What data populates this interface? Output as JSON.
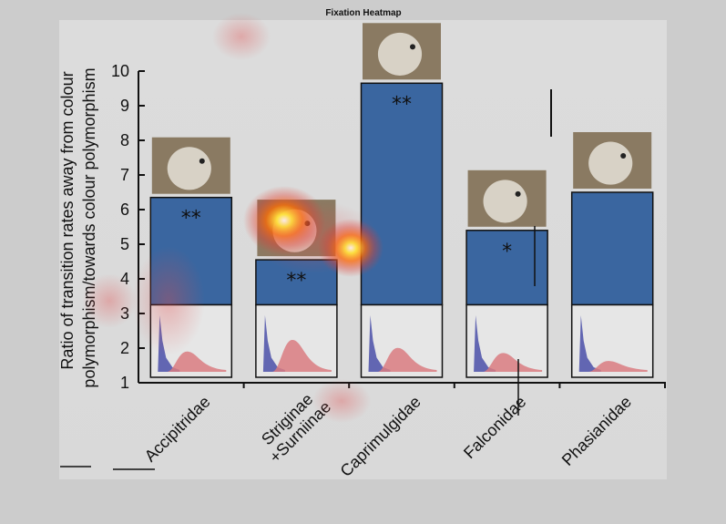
{
  "figure_title": "Fixation Heatmap",
  "chart_data": {
    "type": "bar",
    "title": "",
    "xlabel": "",
    "ylabel": "Ratio of transition rates away from colour polymorphism/towards colour polymorphism",
    "ylim": [
      1,
      10
    ],
    "yticks": [
      1,
      2,
      3,
      4,
      5,
      6,
      7,
      8,
      9,
      10
    ],
    "categories": [
      "Accipitridae",
      "Striginae +Surniinae",
      "Caprimulgidae",
      "Falconidae",
      "Phasianidae"
    ],
    "values": [
      6.35,
      4.55,
      9.65,
      5.4,
      6.5
    ],
    "significance": [
      "**",
      "**",
      "**",
      "*",
      ""
    ],
    "bar_color": "#3a66a0",
    "grid": false,
    "legend": "none",
    "insets": {
      "type": "density",
      "series_colors": [
        "#4a4fa8",
        "#d97b80"
      ]
    },
    "heatmap": {
      "hotspot_color": "#ffee40",
      "diffuse_color": "#e05a5a"
    }
  }
}
